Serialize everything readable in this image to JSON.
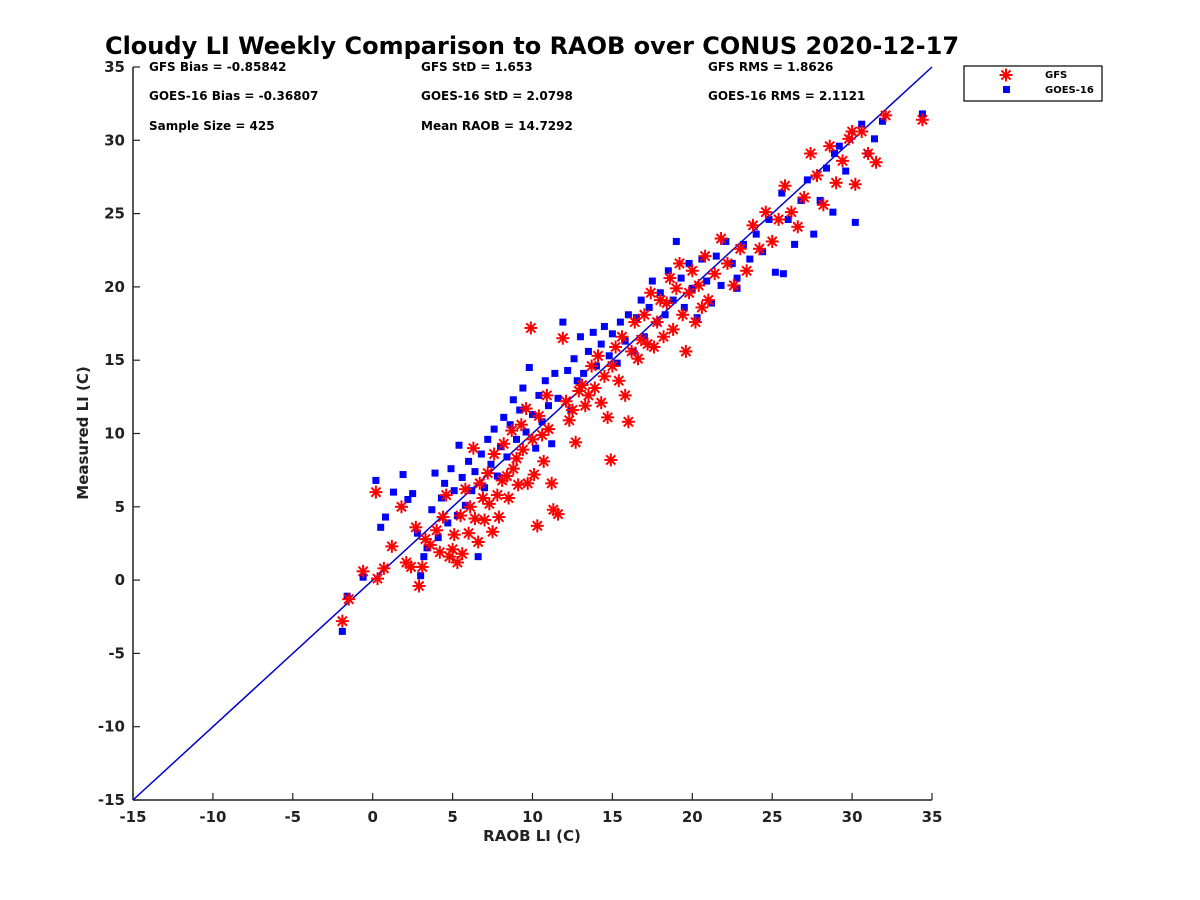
{
  "chart_data": {
    "type": "scatter",
    "title": "Cloudy LI Weekly Comparison to RAOB over CONUS 2020-12-17",
    "xlabel": "RAOB LI (C)",
    "ylabel": "Measured LI (C)",
    "xlim": [
      -15,
      35
    ],
    "ylim": [
      -15,
      35
    ],
    "xticks": [
      "-15",
      "-10",
      "-5",
      "0",
      "5",
      "10",
      "15",
      "20",
      "25",
      "30",
      "35"
    ],
    "yticks": [
      "35",
      "30",
      "25",
      "20",
      "15",
      "10",
      "5",
      "0",
      "-5",
      "-10",
      "-15"
    ],
    "grid": false,
    "legend_position": "outside top-right",
    "reference_line": {
      "type": "one-to-one",
      "color": "#0000cc"
    },
    "stats": {
      "gfs_bias": "GFS Bias = -0.85842",
      "goes_bias": "GOES-16 Bias = -0.36807",
      "sample_size": "Sample Size = 425",
      "gfs_std": "GFS StD = 1.653",
      "goes_std": "GOES-16 StD = 2.0798",
      "mean_raob": "Mean RAOB = 14.7292",
      "gfs_rms": "GFS RMS = 1.8626",
      "goes_rms": "GOES-16 RMS = 2.1121"
    },
    "series": [
      {
        "name": "GFS",
        "marker": "asterisk",
        "color": "#ff0000",
        "points": [
          [
            -1.9,
            -2.8
          ],
          [
            -1.5,
            -1.3
          ],
          [
            -0.6,
            0.6
          ],
          [
            0.2,
            6.0
          ],
          [
            0.3,
            0.1
          ],
          [
            0.7,
            0.8
          ],
          [
            1.2,
            2.3
          ],
          [
            1.8,
            5.0
          ],
          [
            2.1,
            1.2
          ],
          [
            2.4,
            0.9
          ],
          [
            2.7,
            3.6
          ],
          [
            2.9,
            -0.4
          ],
          [
            3.1,
            0.9
          ],
          [
            3.3,
            2.8
          ],
          [
            3.6,
            2.4
          ],
          [
            4.0,
            3.4
          ],
          [
            4.2,
            1.9
          ],
          [
            4.4,
            4.3
          ],
          [
            4.6,
            5.8
          ],
          [
            4.8,
            1.6
          ],
          [
            5.0,
            2.1
          ],
          [
            5.1,
            3.1
          ],
          [
            5.3,
            1.2
          ],
          [
            5.5,
            4.4
          ],
          [
            5.6,
            1.8
          ],
          [
            5.8,
            6.2
          ],
          [
            6.0,
            3.2
          ],
          [
            6.1,
            5.0
          ],
          [
            6.3,
            9.0
          ],
          [
            6.4,
            4.2
          ],
          [
            6.6,
            2.6
          ],
          [
            6.7,
            6.6
          ],
          [
            6.9,
            5.6
          ],
          [
            7.0,
            4.1
          ],
          [
            7.2,
            7.3
          ],
          [
            7.3,
            5.2
          ],
          [
            7.5,
            3.3
          ],
          [
            7.6,
            8.6
          ],
          [
            7.8,
            5.8
          ],
          [
            7.9,
            4.3
          ],
          [
            8.1,
            6.8
          ],
          [
            8.2,
            9.3
          ],
          [
            8.4,
            7.1
          ],
          [
            8.5,
            5.6
          ],
          [
            8.7,
            10.2
          ],
          [
            8.8,
            7.6
          ],
          [
            9.0,
            8.3
          ],
          [
            9.1,
            6.5
          ],
          [
            9.3,
            10.6
          ],
          [
            9.4,
            8.9
          ],
          [
            9.6,
            11.7
          ],
          [
            9.7,
            6.6
          ],
          [
            9.9,
            17.2
          ],
          [
            10.0,
            9.6
          ],
          [
            10.1,
            7.2
          ],
          [
            10.3,
            3.7
          ],
          [
            10.4,
            11.2
          ],
          [
            10.6,
            9.9
          ],
          [
            10.7,
            8.1
          ],
          [
            10.9,
            12.6
          ],
          [
            11.0,
            10.3
          ],
          [
            11.2,
            6.6
          ],
          [
            11.3,
            4.8
          ],
          [
            11.6,
            4.5
          ],
          [
            11.9,
            16.5
          ],
          [
            12.1,
            12.2
          ],
          [
            12.3,
            10.9
          ],
          [
            12.5,
            11.6
          ],
          [
            12.7,
            9.4
          ],
          [
            12.9,
            12.9
          ],
          [
            13.1,
            13.3
          ],
          [
            13.3,
            11.9
          ],
          [
            13.5,
            12.6
          ],
          [
            13.7,
            14.6
          ],
          [
            13.9,
            13.1
          ],
          [
            14.1,
            15.3
          ],
          [
            14.3,
            12.1
          ],
          [
            14.5,
            13.9
          ],
          [
            14.7,
            11.1
          ],
          [
            14.9,
            8.2
          ],
          [
            15.0,
            14.6
          ],
          [
            15.2,
            15.9
          ],
          [
            15.4,
            13.6
          ],
          [
            15.6,
            16.6
          ],
          [
            15.8,
            12.6
          ],
          [
            16.0,
            10.8
          ],
          [
            16.2,
            15.6
          ],
          [
            16.4,
            17.6
          ],
          [
            16.6,
            15.1
          ],
          [
            16.8,
            16.4
          ],
          [
            17.0,
            18.1
          ],
          [
            17.2,
            16.1
          ],
          [
            17.4,
            19.6
          ],
          [
            17.6,
            15.9
          ],
          [
            17.8,
            17.6
          ],
          [
            18.0,
            19.1
          ],
          [
            18.2,
            16.6
          ],
          [
            18.4,
            18.9
          ],
          [
            18.6,
            20.6
          ],
          [
            18.8,
            17.1
          ],
          [
            19.0,
            19.9
          ],
          [
            19.2,
            21.6
          ],
          [
            19.4,
            18.1
          ],
          [
            19.6,
            15.6
          ],
          [
            19.8,
            19.6
          ],
          [
            20.0,
            21.1
          ],
          [
            20.2,
            17.6
          ],
          [
            20.4,
            20.1
          ],
          [
            20.6,
            18.6
          ],
          [
            20.8,
            22.1
          ],
          [
            21.0,
            19.1
          ],
          [
            21.4,
            20.9
          ],
          [
            21.8,
            23.3
          ],
          [
            22.2,
            21.6
          ],
          [
            22.6,
            20.1
          ],
          [
            23.0,
            22.6
          ],
          [
            23.4,
            21.1
          ],
          [
            23.8,
            24.2
          ],
          [
            24.2,
            22.6
          ],
          [
            24.6,
            25.1
          ],
          [
            25.0,
            23.1
          ],
          [
            25.4,
            24.6
          ],
          [
            25.8,
            26.9
          ],
          [
            26.2,
            25.1
          ],
          [
            26.6,
            24.1
          ],
          [
            27.0,
            26.1
          ],
          [
            27.4,
            29.1
          ],
          [
            27.8,
            27.6
          ],
          [
            28.2,
            25.6
          ],
          [
            28.6,
            29.6
          ],
          [
            29.0,
            27.1
          ],
          [
            29.4,
            28.6
          ],
          [
            29.8,
            30.1
          ],
          [
            30.2,
            27.0
          ],
          [
            30.6,
            30.6
          ],
          [
            31.0,
            29.1
          ],
          [
            31.5,
            28.5
          ],
          [
            32.1,
            31.7
          ],
          [
            34.4,
            31.4
          ],
          [
            30.0,
            30.6
          ]
        ]
      },
      {
        "name": "GOES-16",
        "marker": "square",
        "color": "#0000ff",
        "points": [
          [
            -1.9,
            -3.5
          ],
          [
            -1.6,
            -1.1
          ],
          [
            -0.6,
            0.2
          ],
          [
            0.2,
            6.8
          ],
          [
            0.5,
            3.6
          ],
          [
            0.8,
            4.3
          ],
          [
            1.3,
            6.0
          ],
          [
            1.9,
            7.2
          ],
          [
            2.2,
            5.5
          ],
          [
            2.5,
            5.9
          ],
          [
            2.8,
            3.2
          ],
          [
            3.0,
            0.3
          ],
          [
            3.2,
            1.6
          ],
          [
            3.4,
            2.2
          ],
          [
            3.7,
            4.8
          ],
          [
            3.9,
            7.3
          ],
          [
            4.1,
            2.9
          ],
          [
            4.3,
            5.6
          ],
          [
            4.5,
            6.6
          ],
          [
            4.7,
            3.9
          ],
          [
            4.9,
            7.6
          ],
          [
            5.1,
            6.1
          ],
          [
            5.3,
            4.4
          ],
          [
            5.4,
            9.2
          ],
          [
            5.6,
            7.0
          ],
          [
            5.8,
            5.1
          ],
          [
            6.0,
            8.1
          ],
          [
            6.2,
            6.1
          ],
          [
            6.4,
            7.4
          ],
          [
            6.6,
            1.6
          ],
          [
            6.8,
            8.6
          ],
          [
            7.0,
            6.3
          ],
          [
            7.2,
            9.6
          ],
          [
            7.4,
            7.9
          ],
          [
            7.6,
            10.3
          ],
          [
            7.8,
            7.1
          ],
          [
            8.0,
            9.1
          ],
          [
            8.2,
            11.1
          ],
          [
            8.4,
            8.4
          ],
          [
            8.6,
            10.6
          ],
          [
            8.8,
            12.3
          ],
          [
            9.0,
            9.6
          ],
          [
            9.2,
            11.6
          ],
          [
            9.4,
            13.1
          ],
          [
            9.6,
            10.1
          ],
          [
            9.8,
            14.5
          ],
          [
            10.0,
            11.3
          ],
          [
            10.2,
            9.0
          ],
          [
            10.4,
            12.6
          ],
          [
            10.6,
            10.8
          ],
          [
            10.8,
            13.6
          ],
          [
            11.0,
            11.9
          ],
          [
            11.2,
            9.3
          ],
          [
            11.4,
            14.1
          ],
          [
            11.6,
            12.4
          ],
          [
            11.9,
            17.6
          ],
          [
            12.2,
            14.3
          ],
          [
            12.4,
            11.6
          ],
          [
            12.6,
            15.1
          ],
          [
            12.8,
            13.6
          ],
          [
            13.0,
            16.6
          ],
          [
            13.2,
            14.1
          ],
          [
            13.5,
            15.6
          ],
          [
            13.8,
            16.9
          ],
          [
            14.0,
            14.6
          ],
          [
            14.3,
            16.1
          ],
          [
            14.5,
            17.3
          ],
          [
            14.8,
            15.3
          ],
          [
            15.0,
            16.8
          ],
          [
            15.3,
            14.8
          ],
          [
            15.5,
            17.6
          ],
          [
            15.8,
            16.3
          ],
          [
            16.0,
            18.1
          ],
          [
            16.3,
            15.6
          ],
          [
            16.5,
            17.9
          ],
          [
            16.8,
            19.1
          ],
          [
            17.0,
            16.6
          ],
          [
            17.3,
            18.6
          ],
          [
            17.5,
            20.4
          ],
          [
            17.8,
            17.6
          ],
          [
            18.0,
            19.6
          ],
          [
            18.3,
            18.1
          ],
          [
            18.5,
            21.1
          ],
          [
            18.8,
            19.1
          ],
          [
            19.0,
            23.1
          ],
          [
            19.3,
            20.6
          ],
          [
            19.5,
            18.6
          ],
          [
            19.8,
            21.6
          ],
          [
            20.0,
            19.9
          ],
          [
            20.3,
            17.9
          ],
          [
            20.6,
            21.9
          ],
          [
            20.9,
            20.4
          ],
          [
            21.2,
            18.9
          ],
          [
            21.5,
            22.1
          ],
          [
            21.8,
            20.1
          ],
          [
            22.1,
            23.1
          ],
          [
            22.5,
            21.6
          ],
          [
            22.8,
            19.9
          ],
          [
            23.2,
            22.9
          ],
          [
            23.6,
            21.9
          ],
          [
            24.0,
            23.6
          ],
          [
            24.4,
            22.4
          ],
          [
            24.8,
            24.6
          ],
          [
            25.2,
            21.0
          ],
          [
            25.6,
            26.4
          ],
          [
            26.0,
            24.6
          ],
          [
            26.4,
            22.9
          ],
          [
            26.8,
            25.9
          ],
          [
            27.2,
            27.3
          ],
          [
            27.6,
            23.6
          ],
          [
            28.0,
            25.9
          ],
          [
            28.4,
            28.1
          ],
          [
            28.8,
            25.1
          ],
          [
            29.2,
            29.6
          ],
          [
            29.6,
            27.9
          ],
          [
            30.2,
            24.4
          ],
          [
            30.6,
            31.1
          ],
          [
            31.0,
            29.1
          ],
          [
            31.4,
            30.1
          ],
          [
            31.9,
            31.3
          ],
          [
            34.4,
            31.8
          ],
          [
            28.9,
            29.1
          ],
          [
            25.7,
            20.9
          ],
          [
            22.8,
            20.6
          ]
        ]
      }
    ]
  }
}
